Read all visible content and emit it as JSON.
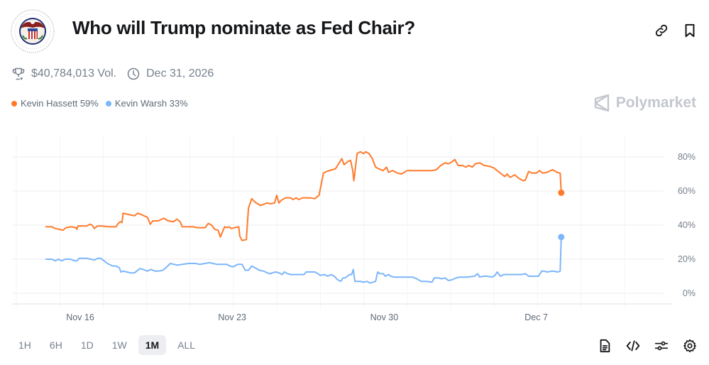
{
  "header": {
    "title": "Who will Trump nominate as Fed Chair?",
    "logo_alt": "Federal Reserve seal",
    "volume": "$40,784,013 Vol.",
    "end_date": "Dec 31, 2026"
  },
  "icons": {
    "trophy": "trophy-icon",
    "clock": "clock-icon",
    "link": "link-icon",
    "bookmark": "bookmark-icon",
    "brand": "polymarket-logo-icon",
    "document": "document-icon",
    "code": "code-icon",
    "sliders": "sliders-icon",
    "settings": "gear-icon"
  },
  "brand": {
    "name": "Polymarket"
  },
  "legend": [
    {
      "label": "Kevin Hassett 59%",
      "color": "#ff7b2c"
    },
    {
      "label": "Kevin Warsh 33%",
      "color": "#7cb6fb"
    }
  ],
  "time_ranges": [
    {
      "label": "1H",
      "active": false
    },
    {
      "label": "6H",
      "active": false
    },
    {
      "label": "1D",
      "active": false
    },
    {
      "label": "1W",
      "active": false
    },
    {
      "label": "1M",
      "active": true
    },
    {
      "label": "ALL",
      "active": false
    }
  ],
  "chart_data": {
    "type": "line",
    "title": "Who will Trump nominate as Fed Chair?",
    "xlabel": "",
    "ylabel": "",
    "x_unit": "days since Nov 16",
    "xlim": [
      -3.15,
      26.7
    ],
    "ylim": [
      0,
      85
    ],
    "yticks": [
      0,
      20,
      40,
      60,
      80
    ],
    "ytick_labels": [
      "0%",
      "20%",
      "40%",
      "60%",
      "80%"
    ],
    "xticks": [
      0,
      7,
      14,
      21
    ],
    "xtick_labels": [
      "Nov 16",
      "Nov 23",
      "Nov 30",
      "Dec 7"
    ],
    "grid": true,
    "legend_position": "top-left",
    "series": [
      {
        "name": "Kevin Hassett",
        "color": "#ff7b2c",
        "last_value": 59,
        "points": [
          [
            -3.15,
            39
          ],
          [
            -2.6,
            39
          ],
          [
            -2.3,
            38
          ],
          [
            -1.9,
            37.5
          ],
          [
            -1.6,
            37
          ],
          [
            -1.3,
            38.5
          ],
          [
            -0.8,
            39
          ],
          [
            -0.4,
            38.5
          ],
          [
            -0.3,
            37.5
          ],
          [
            -0.2,
            39.5
          ],
          [
            0.6,
            39.5
          ],
          [
            0.9,
            40.5
          ],
          [
            1.1,
            40
          ],
          [
            1.3,
            38
          ],
          [
            1.6,
            39.5
          ],
          [
            2.0,
            39.5
          ],
          [
            2.6,
            39
          ],
          [
            3.0,
            39
          ],
          [
            3.3,
            39
          ],
          [
            3.5,
            41
          ],
          [
            3.7,
            42
          ],
          [
            3.85,
            41.5
          ],
          [
            3.95,
            47
          ],
          [
            4.6,
            46
          ],
          [
            5.0,
            45.5
          ],
          [
            5.3,
            47
          ],
          [
            5.7,
            46
          ],
          [
            6.2,
            44.5
          ],
          [
            6.45,
            40.5
          ],
          [
            6.7,
            42.5
          ],
          [
            7.2,
            42.5
          ],
          [
            7.5,
            43.5
          ],
          [
            7.7,
            44
          ],
          [
            8.1,
            42.5
          ],
          [
            8.6,
            42
          ],
          [
            8.9,
            43.5
          ],
          [
            9.2,
            42
          ],
          [
            9.4,
            39
          ],
          [
            10.4,
            39
          ],
          [
            10.8,
            38.5
          ],
          [
            11.5,
            38.5
          ],
          [
            11.8,
            41
          ],
          [
            12.1,
            40
          ],
          [
            12.4,
            37.5
          ],
          [
            12.7,
            37
          ],
          [
            12.9,
            33
          ],
          [
            13.3,
            39
          ],
          [
            13.5,
            38.5
          ],
          [
            13.7,
            39
          ],
          [
            13.9,
            38
          ],
          [
            14.6,
            39
          ],
          [
            14.7,
            33.5
          ],
          [
            14.9,
            31
          ],
          [
            15.3,
            31.5
          ],
          [
            15.5,
            50
          ],
          [
            15.8,
            55.5
          ],
          [
            16.1,
            53.5
          ],
          [
            16.6,
            51.5
          ],
          [
            17.2,
            53
          ],
          [
            17.5,
            52.5
          ],
          [
            17.9,
            53
          ],
          [
            18.1,
            57.5
          ],
          [
            18.3,
            53
          ],
          [
            18.5,
            54.5
          ],
          [
            18.9,
            56
          ],
          [
            19.4,
            56
          ],
          [
            19.6,
            55
          ],
          [
            19.9,
            56
          ],
          [
            20.1,
            55
          ],
          [
            20.5,
            56
          ],
          [
            20.9,
            56
          ],
          [
            21.2,
            56
          ],
          [
            21.6,
            55.5
          ],
          [
            21.9,
            57
          ],
          [
            22.0,
            57.5
          ],
          [
            22.4,
            70.5
          ],
          [
            22.7,
            71.5
          ],
          [
            23.2,
            72.5
          ],
          [
            23.5,
            73
          ],
          [
            23.7,
            75
          ],
          [
            24.1,
            79
          ],
          [
            24.3,
            75.5
          ],
          [
            24.7,
            77.5
          ],
          [
            24.9,
            78
          ],
          [
            25.1,
            72
          ],
          [
            25.2,
            66
          ],
          [
            25.5,
            82
          ],
          [
            25.8,
            83
          ],
          [
            26.1,
            82
          ],
          [
            26.3,
            83
          ]
        ]
      },
      {
        "name": "Kevin Warsh",
        "color": "#7cb6fb",
        "last_value": 33,
        "points": [
          [
            -3.15,
            20
          ],
          [
            -2.6,
            20
          ],
          [
            -2.3,
            19
          ],
          [
            -2.0,
            20
          ],
          [
            -1.7,
            19
          ],
          [
            -1.4,
            20
          ],
          [
            -0.9,
            20
          ],
          [
            -0.5,
            19
          ],
          [
            -0.3,
            19
          ],
          [
            -0.1,
            20.5
          ],
          [
            0.6,
            20.5
          ],
          [
            1.0,
            20
          ],
          [
            1.3,
            19.5
          ],
          [
            1.6,
            20.5
          ],
          [
            1.9,
            20.5
          ],
          [
            2.1,
            19.5
          ],
          [
            2.5,
            17.5
          ],
          [
            3.0,
            16
          ],
          [
            3.3,
            16
          ],
          [
            3.6,
            15
          ],
          [
            3.75,
            12.5
          ],
          [
            4.0,
            13
          ],
          [
            4.3,
            12.5
          ],
          [
            4.6,
            12
          ],
          [
            5.0,
            12
          ],
          [
            5.2,
            13
          ],
          [
            5.5,
            14.5
          ],
          [
            5.8,
            14
          ],
          [
            6.2,
            13
          ],
          [
            6.5,
            14
          ],
          [
            6.9,
            13
          ],
          [
            7.2,
            13
          ],
          [
            7.6,
            13.5
          ],
          [
            7.9,
            15
          ],
          [
            8.3,
            17.5
          ],
          [
            8.6,
            17
          ],
          [
            9.0,
            16.5
          ],
          [
            9.4,
            17
          ],
          [
            10.0,
            17.5
          ],
          [
            10.6,
            17.5
          ],
          [
            11.0,
            17
          ],
          [
            11.5,
            17.5
          ],
          [
            11.9,
            18
          ],
          [
            12.2,
            17.5
          ],
          [
            12.6,
            17
          ],
          [
            13.0,
            17
          ],
          [
            13.5,
            17
          ],
          [
            13.8,
            16
          ],
          [
            14.1,
            15.5
          ],
          [
            14.5,
            17
          ],
          [
            14.9,
            17
          ],
          [
            15.2,
            13.5
          ],
          [
            15.5,
            13.5
          ],
          [
            15.8,
            16
          ],
          [
            16.1,
            15
          ],
          [
            16.5,
            13.5
          ],
          [
            16.9,
            13
          ],
          [
            17.2,
            12
          ],
          [
            17.5,
            11.5
          ],
          [
            17.7,
            12
          ],
          [
            18.0,
            12.5
          ],
          [
            18.3,
            12
          ],
          [
            18.6,
            11
          ],
          [
            18.8,
            12.5
          ],
          [
            19.1,
            11.5
          ],
          [
            19.4,
            11
          ],
          [
            20.0,
            11
          ],
          [
            20.6,
            11
          ],
          [
            20.8,
            12.5
          ],
          [
            21.6,
            12.5
          ],
          [
            21.9,
            11.5
          ],
          [
            22.1,
            10.5
          ],
          [
            22.5,
            11
          ],
          [
            22.8,
            10
          ],
          [
            23.1,
            11
          ],
          [
            23.4,
            10
          ],
          [
            23.7,
            8
          ],
          [
            24.0,
            7
          ],
          [
            24.2,
            9
          ],
          [
            24.4,
            9
          ],
          [
            24.6,
            10
          ],
          [
            24.8,
            11
          ],
          [
            25.0,
            11
          ],
          [
            25.15,
            14
          ],
          [
            25.3,
            7
          ],
          [
            25.8,
            7
          ],
          [
            26.1,
            6.5
          ],
          [
            26.4,
            7
          ],
          [
            26.7,
            6
          ]
        ]
      }
    ]
  },
  "chart_extra": {
    "hassett_tail": [
      [
        26.3,
        83
      ],
      [
        26.6,
        82
      ],
      [
        26.9,
        79
      ],
      [
        27.2,
        74
      ],
      [
        27.5,
        73
      ],
      [
        27.9,
        72
      ],
      [
        28.2,
        74
      ],
      [
        28.4,
        71
      ],
      [
        28.8,
        72
      ],
      [
        29.2,
        70.5
      ],
      [
        29.6,
        70
      ],
      [
        30.1,
        72
      ],
      [
        30.6,
        72
      ],
      [
        31.2,
        72
      ],
      [
        31.8,
        72
      ],
      [
        32.4,
        72
      ],
      [
        32.8,
        72.5
      ],
      [
        33.2,
        75
      ],
      [
        33.6,
        76.5
      ],
      [
        33.9,
        76
      ],
      [
        34.2,
        77
      ],
      [
        34.5,
        78.5
      ],
      [
        34.8,
        75
      ],
      [
        35.2,
        75
      ],
      [
        35.5,
        74
      ],
      [
        35.8,
        75
      ],
      [
        36.1,
        74
      ],
      [
        36.4,
        76
      ],
      [
        36.8,
        76.5
      ],
      [
        37.2,
        75
      ],
      [
        37.7,
        74.5
      ],
      [
        38.1,
        73.5
      ],
      [
        38.5,
        71.5
      ],
      [
        38.8,
        70
      ],
      [
        39.1,
        68.5
      ],
      [
        39.3,
        70
      ],
      [
        39.6,
        68
      ],
      [
        40.0,
        69.5
      ],
      [
        40.4,
        67.5
      ],
      [
        40.8,
        66
      ],
      [
        41.0,
        66.5
      ],
      [
        41.3,
        71.5
      ],
      [
        41.6,
        70.5
      ],
      [
        42.0,
        70.5
      ],
      [
        42.3,
        72
      ],
      [
        42.6,
        70.5
      ],
      [
        43.0,
        71
      ],
      [
        43.5,
        72.5
      ],
      [
        43.9,
        71
      ],
      [
        44.2,
        70.5
      ],
      [
        44.3,
        59
      ]
    ],
    "warsh_tail": [
      [
        26.7,
        6
      ],
      [
        27.2,
        7
      ],
      [
        27.4,
        12.5
      ],
      [
        27.6,
        11.5
      ],
      [
        27.9,
        11.5
      ],
      [
        28.1,
        10
      ],
      [
        28.4,
        11
      ],
      [
        28.6,
        10
      ],
      [
        28.9,
        9.5
      ],
      [
        29.5,
        9.5
      ],
      [
        30.1,
        9.5
      ],
      [
        30.6,
        9.5
      ],
      [
        31.0,
        8.5
      ],
      [
        31.4,
        7
      ],
      [
        31.9,
        7
      ],
      [
        32.4,
        6.5
      ],
      [
        32.6,
        9
      ],
      [
        33.0,
        9
      ],
      [
        33.3,
        8.5
      ],
      [
        33.6,
        9
      ],
      [
        33.9,
        7.5
      ],
      [
        34.3,
        8
      ],
      [
        34.6,
        9
      ],
      [
        35.0,
        9.5
      ],
      [
        35.6,
        9.5
      ],
      [
        36.3,
        10
      ],
      [
        36.6,
        11.5
      ],
      [
        36.8,
        9.5
      ],
      [
        37.1,
        10
      ],
      [
        37.5,
        10
      ],
      [
        37.9,
        9.5
      ],
      [
        38.2,
        10.5
      ],
      [
        38.4,
        12.5
      ],
      [
        38.7,
        10
      ],
      [
        39.0,
        11
      ],
      [
        39.6,
        11
      ],
      [
        40.2,
        11
      ],
      [
        40.6,
        11
      ],
      [
        41.0,
        11.5
      ],
      [
        41.3,
        10
      ],
      [
        41.8,
        10
      ],
      [
        42.2,
        10
      ],
      [
        42.5,
        13
      ],
      [
        42.7,
        13
      ],
      [
        43.0,
        12.5
      ],
      [
        43.5,
        13
      ],
      [
        44.0,
        12.5
      ],
      [
        44.2,
        13
      ],
      [
        44.3,
        33
      ]
    ]
  }
}
